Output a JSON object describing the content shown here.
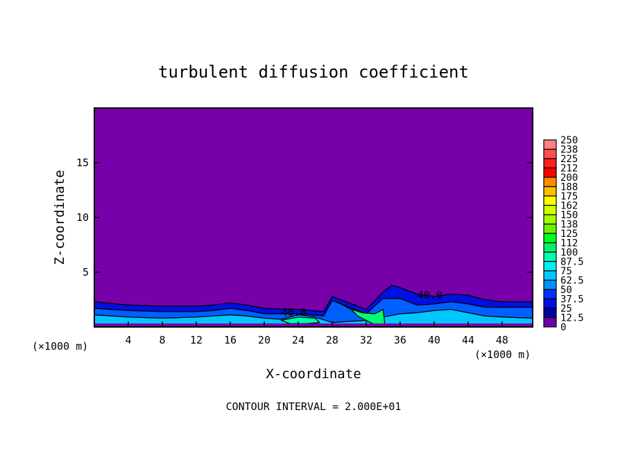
{
  "chart_data": {
    "type": "heatmap",
    "subtype": "filled-contour",
    "title": "turbulent diffusion coefficient",
    "xlabel": "X-coordinate",
    "ylabel": "Z-coordinate",
    "x_unit_label": "(×1000 m)",
    "y_unit_label": "(×1000 m)",
    "xlim": [
      0,
      51.6
    ],
    "ylim": [
      0,
      20
    ],
    "xticks": [
      4,
      8,
      12,
      16,
      20,
      24,
      28,
      32,
      36,
      40,
      44,
      48
    ],
    "yticks": [
      5,
      10,
      15
    ],
    "footer": "CONTOUR INTERVAL = 2.000E+01",
    "contour_label": "40.0",
    "contour_label_positions": [
      [
        23.5,
        1.0
      ],
      [
        39.5,
        2.6
      ]
    ],
    "colorbar": {
      "labels": [
        "250",
        "238",
        "225",
        "212",
        "200",
        "188",
        "175",
        "162",
        "150",
        "138",
        "125",
        "112",
        "100",
        "87.5",
        "75",
        "62.5",
        "50",
        "37.5",
        "25",
        "12.5",
        "0"
      ],
      "colors": [
        "#ff8080",
        "#ff5050",
        "#ff2020",
        "#ff0000",
        "#ff4800",
        "#ff8c00",
        "#ffbc00",
        "#ffff00",
        "#d0ff00",
        "#a0ff00",
        "#70f000",
        "#40ff00",
        "#00ff20",
        "#00f070",
        "#00ffb0",
        "#00f0f0",
        "#00c8ff",
        "#0090ff",
        "#0060ff",
        "#0030ff",
        "#0010e0",
        "#0000a8",
        "#7000a0"
      ],
      "background_color": "#7800a8"
    },
    "approx_fields": [
      {
        "level": "12.5",
        "color": "#0010e0",
        "x": [
          0,
          4,
          8,
          12,
          14,
          16,
          18,
          20,
          24,
          27,
          28,
          30,
          32,
          34,
          35,
          36,
          38,
          40,
          42,
          44,
          46,
          48,
          51.6
        ],
        "z": [
          2.3,
          2.0,
          1.9,
          1.9,
          2.0,
          2.2,
          2.0,
          1.7,
          1.6,
          1.4,
          2.8,
          2.2,
          1.6,
          3.2,
          3.8,
          3.6,
          3.0,
          2.8,
          3.0,
          2.9,
          2.5,
          2.3,
          2.3
        ]
      },
      {
        "level": "37.5",
        "color": "#0060ff",
        "x": [
          0,
          4,
          8,
          12,
          14,
          16,
          18,
          20,
          24,
          27,
          28,
          30,
          32,
          34,
          36,
          38,
          40,
          42,
          44,
          46,
          48,
          51.6
        ],
        "z": [
          1.7,
          1.5,
          1.4,
          1.4,
          1.5,
          1.7,
          1.5,
          1.2,
          1.2,
          1.0,
          2.4,
          1.8,
          1.2,
          2.6,
          2.6,
          2.0,
          2.1,
          2.3,
          2.1,
          1.8,
          1.8,
          1.8
        ]
      },
      {
        "level": "62.5",
        "color": "#00c8ff",
        "x": [
          0,
          4,
          8,
          12,
          16,
          18,
          20,
          22,
          24,
          26,
          28,
          32,
          34,
          36,
          38,
          40,
          42,
          44,
          46,
          48,
          51.6
        ],
        "z": [
          1.1,
          0.9,
          0.8,
          0.9,
          1.1,
          1.0,
          0.8,
          0.7,
          1.1,
          0.9,
          0.4,
          0.6,
          0.9,
          1.2,
          1.3,
          1.5,
          1.6,
          1.3,
          1.0,
          0.9,
          0.8
        ]
      },
      {
        "level": "100",
        "color": "#00ff70",
        "x": [
          28.5,
          30,
          31.5,
          33,
          34,
          34.2,
          33,
          32,
          31,
          30
        ],
        "z": [
          2.3,
          1.7,
          1.3,
          1.2,
          1.6,
          0.2,
          0.2,
          0.6,
          1.0,
          1.8
        ]
      },
      {
        "level": "87.5",
        "color": "#00ffb0",
        "x": [
          22,
          24,
          26,
          26.5,
          25,
          23
        ],
        "z": [
          0.6,
          0.9,
          0.8,
          0.4,
          0.3,
          0.3
        ]
      }
    ]
  }
}
